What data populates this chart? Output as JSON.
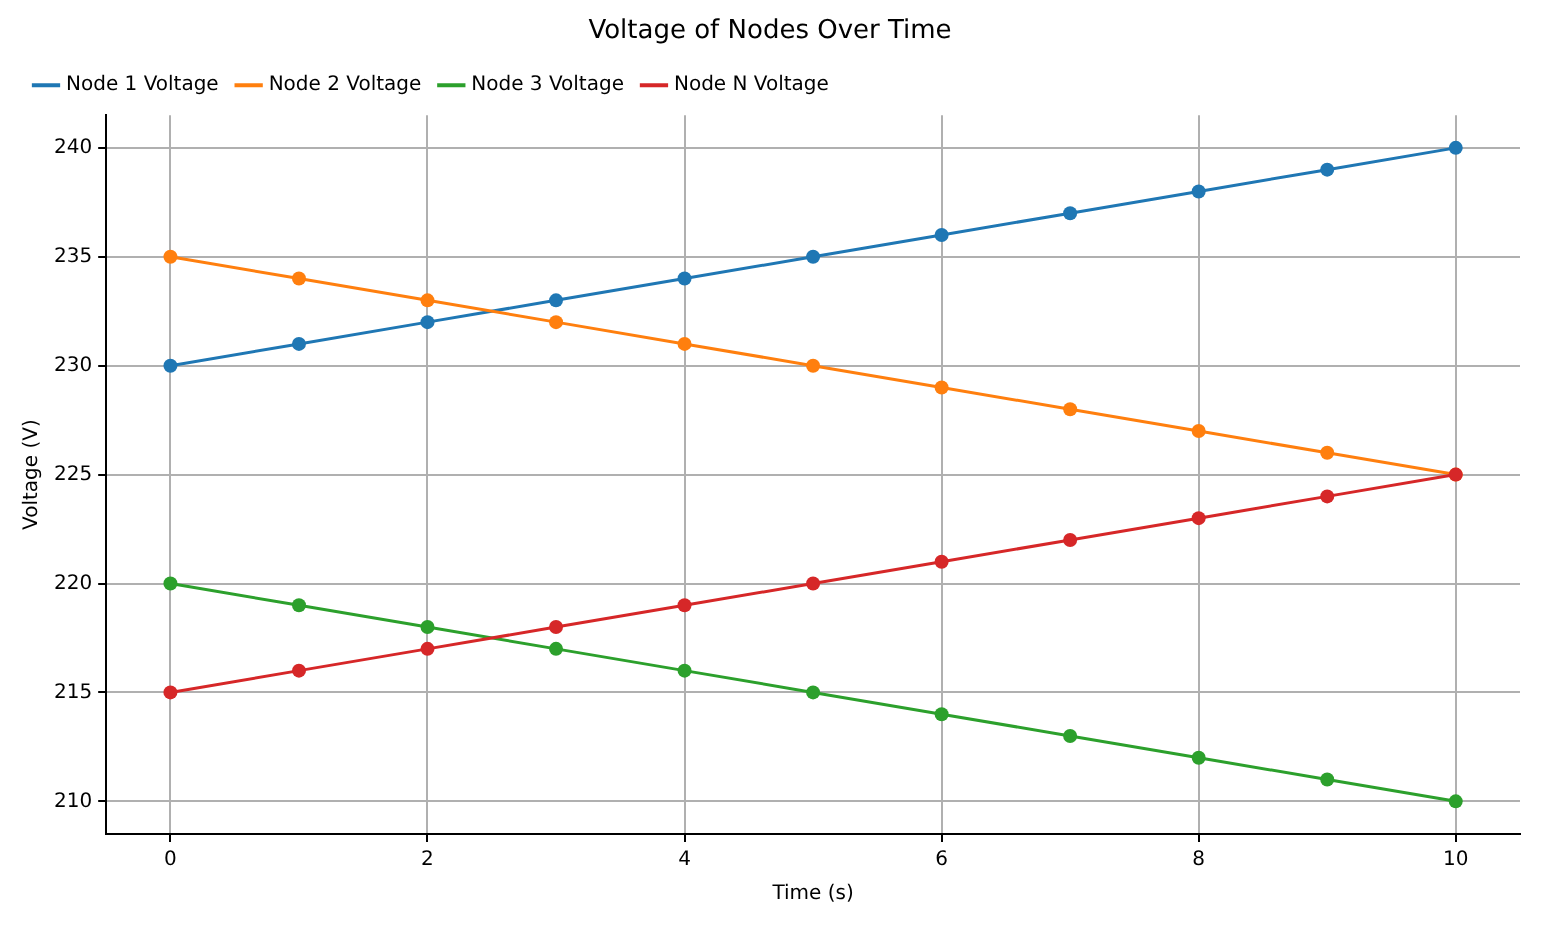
{
  "chart_data": {
    "type": "line",
    "title": "Voltage of Nodes Over Time",
    "xlabel": "Time (s)",
    "ylabel": "Voltage (V)",
    "x": [
      0,
      1,
      2,
      3,
      4,
      5,
      6,
      7,
      8,
      9,
      10
    ],
    "series": [
      {
        "name": "Node 1 Voltage",
        "color": "#1f77b4",
        "values": [
          230,
          231,
          232,
          233,
          234,
          235,
          236,
          237,
          238,
          239,
          240
        ]
      },
      {
        "name": "Node 2 Voltage",
        "color": "#ff7f0e",
        "values": [
          235,
          234,
          233,
          232,
          231,
          230,
          229,
          228,
          227,
          226,
          225
        ]
      },
      {
        "name": "Node 3 Voltage",
        "color": "#2ca02c",
        "values": [
          220,
          219,
          218,
          217,
          216,
          215,
          214,
          213,
          212,
          211,
          210
        ]
      },
      {
        "name": "Node N Voltage",
        "color": "#d62728",
        "values": [
          215,
          216,
          217,
          218,
          219,
          220,
          221,
          222,
          223,
          224,
          225
        ]
      }
    ],
    "xlim": [
      -0.5,
      10.5
    ],
    "xticks": [
      0,
      2,
      4,
      6,
      8,
      10
    ],
    "ylim": [
      208.5,
      241.5
    ],
    "yticks": [
      210,
      215,
      220,
      225,
      230,
      235,
      240
    ],
    "grid": true,
    "legend": "top left",
    "marker": "circle",
    "line_style": "solid"
  }
}
